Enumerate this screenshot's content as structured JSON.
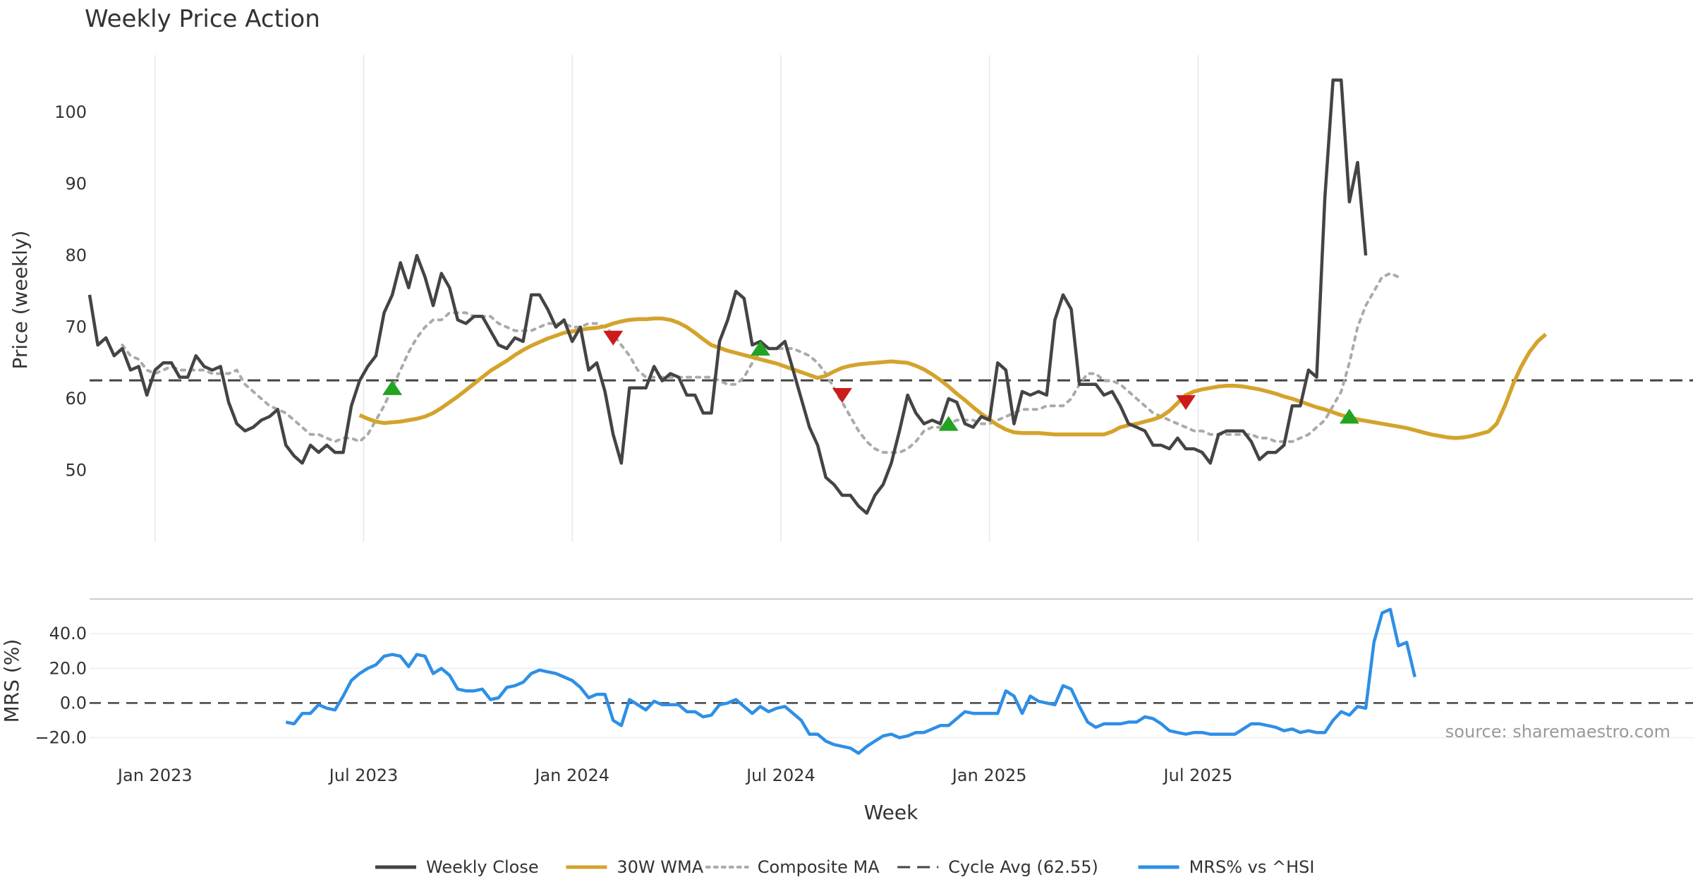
{
  "chart_data": [
    {
      "type": "line",
      "title": "Weekly Price Action",
      "ylabel": "Price (weekly)",
      "ylim": [
        40,
        108
      ],
      "yticks": [
        50,
        60,
        70,
        80,
        90,
        100
      ],
      "x_range": [
        0,
        196
      ],
      "cycle_avg": 62.55,
      "series": [
        {
          "name": "Weekly Close",
          "color": "#444444",
          "x_start": 0,
          "values": [
            74.5,
            67.5,
            68.5,
            66,
            67,
            64,
            64.5,
            60.5,
            64,
            65,
            65,
            63,
            63,
            66,
            64.5,
            64,
            64.5,
            59.5,
            56.5,
            55.5,
            56,
            57,
            57.5,
            58.5,
            53.5,
            52,
            51,
            53.5,
            52.5,
            53.5,
            52.5,
            52.5,
            59,
            62.5,
            64.5,
            66,
            72,
            74.5,
            79,
            75.5,
            80,
            77,
            73,
            77.5,
            75.5,
            71,
            70.5,
            71.5,
            71.5,
            69.5,
            67.5,
            67,
            68.5,
            68,
            74.5,
            74.5,
            72.5,
            70,
            71,
            68,
            70,
            64,
            65,
            61,
            55,
            51,
            61.5,
            61.5,
            61.5,
            64.5,
            62.5,
            63.5,
            63,
            60.5,
            60.5,
            58,
            58,
            68,
            71,
            75,
            74,
            67.5,
            68,
            67,
            67,
            68,
            64,
            60,
            56,
            53.5,
            49,
            48,
            46.5,
            46.5,
            45,
            44,
            46.5,
            48,
            51,
            55.5,
            60.5,
            58,
            56.5,
            57,
            56.5,
            60,
            59.5,
            56.5,
            56,
            57.5,
            57,
            65,
            64,
            56.5,
            61,
            60.5,
            61,
            60.5,
            71,
            74.5,
            72.5,
            62,
            62,
            62,
            60.5,
            61,
            59,
            56.5,
            56,
            55.5,
            53.5,
            53.5,
            53,
            54.5,
            53,
            53,
            52.5,
            51,
            55,
            55.5,
            55.5,
            55.5,
            54,
            51.5,
            52.5,
            52.5,
            53.5,
            59,
            59,
            64,
            63,
            88,
            104.5,
            104.5,
            87.5,
            93,
            80
          ]
        },
        {
          "name": "30W WMA",
          "color": "#d4a32c",
          "x_start": 33,
          "values": [
            57.7,
            57.2,
            56.8,
            56.6,
            56.7,
            56.8,
            57.0,
            57.2,
            57.5,
            58.0,
            58.7,
            59.5,
            60.3,
            61.2,
            62.1,
            63.0,
            63.9,
            64.6,
            65.3,
            66.1,
            66.8,
            67.4,
            67.9,
            68.4,
            68.8,
            69.2,
            69.4,
            69.6,
            69.8,
            69.9,
            70.1,
            70.5,
            70.8,
            71.0,
            71.1,
            71.1,
            71.2,
            71.2,
            71.0,
            70.6,
            70.0,
            69.2,
            68.3,
            67.5,
            67.1,
            66.7,
            66.4,
            66.1,
            65.8,
            65.5,
            65.2,
            64.9,
            64.5,
            64.1,
            63.7,
            63.3,
            62.9,
            63.2,
            63.8,
            64.3,
            64.6,
            64.8,
            64.9,
            65.0,
            65.1,
            65.2,
            65.1,
            65.0,
            64.6,
            64.1,
            63.4,
            62.6,
            61.7,
            60.7,
            59.8,
            58.8,
            57.9,
            57.1,
            56.3,
            55.7,
            55.3,
            55.2,
            55.2,
            55.2,
            55.1,
            55.0,
            55.0,
            55.0,
            55.0,
            55.0,
            55.0,
            55.0,
            55.4,
            56.0,
            56.3,
            56.5,
            56.8,
            57.1,
            57.5,
            58.3,
            59.4,
            60.5,
            61.0,
            61.3,
            61.5,
            61.7,
            61.8,
            61.8,
            61.7,
            61.5,
            61.3,
            61.0,
            60.7,
            60.3,
            60.0,
            59.6,
            59.2,
            58.8,
            58.5,
            58.1,
            57.7,
            57.4,
            57.1,
            56.9,
            56.7,
            56.5,
            56.3,
            56.1,
            55.9,
            55.6,
            55.3,
            55.0,
            54.8,
            54.6,
            54.5,
            54.6,
            54.8,
            55.1,
            55.4,
            56.5,
            59.0,
            62.0,
            64.5,
            66.5,
            68.0,
            69.0
          ]
        },
        {
          "name": "Composite MA",
          "color": "#aaaaaa",
          "x_start": 4,
          "values": [
            67.5,
            66,
            65.5,
            64,
            63.5,
            64,
            64.5,
            64,
            64,
            64,
            64,
            63.5,
            63.5,
            63.5,
            64,
            62,
            61,
            60,
            59,
            58.5,
            58,
            57,
            56,
            55,
            55,
            54.5,
            54,
            54.5,
            54.5,
            54,
            55,
            57,
            59,
            61.5,
            64,
            66.5,
            68.5,
            70,
            71,
            71,
            72,
            72,
            72,
            71.5,
            71.5,
            71.5,
            70.5,
            70,
            69.5,
            69.5,
            69.5,
            70,
            70.5,
            70.5,
            70.5,
            70,
            70,
            70.5,
            70.5,
            70,
            69,
            67.5,
            66,
            64,
            63,
            63,
            63,
            63,
            63,
            63,
            63,
            63,
            63,
            62.5,
            62,
            62,
            63,
            65,
            66.5,
            67,
            67,
            67,
            67,
            66.5,
            66,
            65,
            63.5,
            61.5,
            59.5,
            57.5,
            55.5,
            54,
            53,
            52.5,
            52.5,
            52.5,
            53,
            54,
            55.5,
            56,
            56,
            56.5,
            57,
            57,
            57,
            56.5,
            56.5,
            57,
            57.5,
            58,
            58.5,
            58.5,
            58.5,
            59,
            59,
            59,
            60,
            62,
            63.5,
            63.5,
            62.5,
            62.5,
            62,
            61,
            60,
            59,
            58,
            57.5,
            57,
            56.5,
            56,
            55.5,
            55.5,
            55,
            55,
            55,
            55,
            55,
            55,
            54.5,
            54.5,
            54,
            54,
            54,
            54.5,
            55,
            56,
            57,
            59,
            61,
            65,
            70,
            73,
            75,
            77,
            77.5,
            77
          ]
        }
      ],
      "buy_signals": [
        {
          "x": 37,
          "y": 61.5
        },
        {
          "x": 82,
          "y": 67
        },
        {
          "x": 105,
          "y": 56.5
        },
        {
          "x": 154,
          "y": 57.5
        }
      ],
      "sell_signals": [
        {
          "x": 64,
          "y": 68.5
        },
        {
          "x": 92,
          "y": 60.5
        },
        {
          "x": 134,
          "y": 59.5
        }
      ]
    },
    {
      "type": "line",
      "ylabel": "MRS (%)",
      "ylim": [
        -32,
        60
      ],
      "yticks": [
        40.0,
        20.0,
        0.0,
        -20.0
      ],
      "ytick_labels": [
        "40.0",
        "20.0",
        "0.0",
        "−20.0"
      ],
      "xlabel": "Week",
      "x_tick_positions": [
        8,
        33.5,
        59,
        84.5,
        110,
        135.5
      ],
      "x_tick_labels": [
        "Jan 2023",
        "Jul 2023",
        "Jan 2024",
        "Jul 2024",
        "Jan 2025",
        "Jul 2025"
      ],
      "series": [
        {
          "name": "MRS% vs ^HSI",
          "color": "#2e8fe6",
          "x_start": 24,
          "values": [
            -11,
            -12,
            -6,
            -6,
            -1,
            -3,
            -4,
            4,
            13,
            17,
            20,
            22,
            27,
            28,
            27,
            21,
            28,
            27,
            17,
            20,
            16,
            8,
            7,
            7,
            8,
            2,
            3,
            9,
            10,
            12,
            17,
            19,
            18,
            17,
            15,
            13,
            9,
            3,
            5,
            5,
            -10,
            -13,
            2,
            -1,
            -4,
            1,
            -1,
            -1,
            -1,
            -5,
            -5,
            -8,
            -7,
            -1,
            0,
            2,
            -2,
            -6,
            -2,
            -5,
            -3,
            -2,
            -6,
            -10,
            -18,
            -18,
            -22,
            -24,
            -25,
            -26,
            -29,
            -25,
            -22,
            -19,
            -18,
            -20,
            -19,
            -17,
            -17,
            -15,
            -13,
            -13,
            -9,
            -5,
            -6,
            -6,
            -6,
            -6,
            7,
            4,
            -6,
            4,
            1,
            0,
            -1,
            10,
            8,
            -2,
            -11,
            -14,
            -12,
            -12,
            -12,
            -11,
            -11,
            -8,
            -9,
            -12,
            -16,
            -17,
            -18,
            -17,
            -17,
            -18,
            -18,
            -18,
            -18,
            -15,
            -12,
            -12,
            -13,
            -14,
            -16,
            -15,
            -17,
            -16,
            -17,
            -17,
            -10,
            -5,
            -7,
            -2,
            -3,
            35,
            52,
            54,
            33,
            35,
            15
          ]
        }
      ],
      "annotation": "source: sharemaestro.com"
    }
  ],
  "legend": [
    {
      "label": "Weekly Close",
      "color": "#444444",
      "style": "solid"
    },
    {
      "label": "30W WMA",
      "color": "#d4a32c",
      "style": "solid"
    },
    {
      "label": "Composite MA",
      "color": "#aaaaaa",
      "style": "dotted"
    },
    {
      "label": "Cycle Avg (62.55)",
      "color": "#444444",
      "style": "dashed"
    },
    {
      "label": "MRS% vs ^HSI",
      "color": "#2e8fe6",
      "style": "solid"
    }
  ]
}
